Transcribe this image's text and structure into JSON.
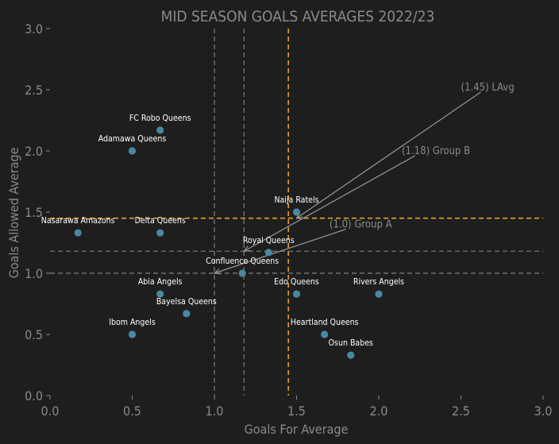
{
  "chart_data": {
    "type": "scatter",
    "title": "MID SEASON GOALS AVERAGES 2022/23",
    "xlabel": "Goals For Average",
    "ylabel": "Goals Allowed Average",
    "xlim": [
      0.0,
      3.0
    ],
    "ylim": [
      0.0,
      3.0
    ],
    "x_ticks": [
      "0.0",
      "0.5",
      "1.0",
      "1.5",
      "2.0",
      "2.5",
      "3.0"
    ],
    "y_ticks": [
      "0.0",
      "0.5",
      "1.0",
      "1.5",
      "2.0",
      "2.5",
      "3.0"
    ],
    "points": [
      {
        "label": "FC Robo Queens",
        "x": 0.67,
        "y": 2.17
      },
      {
        "label": "Adamawa Queens",
        "x": 0.5,
        "y": 2.0
      },
      {
        "label": "Nasarawa Amazons",
        "x": 0.17,
        "y": 1.33
      },
      {
        "label": "Delta Queens",
        "x": 0.67,
        "y": 1.33
      },
      {
        "label": "Naija Ratels",
        "x": 1.5,
        "y": 1.5
      },
      {
        "label": "Royal Queens",
        "x": 1.33,
        "y": 1.17
      },
      {
        "label": "Confluence Queens",
        "x": 1.17,
        "y": 1.0
      },
      {
        "label": "Abia Angels",
        "x": 0.67,
        "y": 0.83
      },
      {
        "label": "Bayelsa Queens",
        "x": 0.83,
        "y": 0.67
      },
      {
        "label": "Ibom Angels",
        "x": 0.5,
        "y": 0.5
      },
      {
        "label": "Edo Queens",
        "x": 1.5,
        "y": 0.83
      },
      {
        "label": "Rivers Angels",
        "x": 2.0,
        "y": 0.83
      },
      {
        "label": "Heartland Queens",
        "x": 1.67,
        "y": 0.5
      },
      {
        "label": "Osun Babes",
        "x": 1.83,
        "y": 0.33
      }
    ],
    "reference_lines": [
      {
        "label": "(1.45) LAvg",
        "value": 1.45,
        "color": "#e6a21e"
      },
      {
        "label": "(1.18) Group B",
        "value": 1.18,
        "color": "#707070"
      },
      {
        "label": "(1.0) Group A",
        "value": 1.0,
        "color": "#707070"
      }
    ],
    "point_color": "#4a88a2",
    "background": "#1e1e1e",
    "grid": false,
    "legend": "none"
  }
}
